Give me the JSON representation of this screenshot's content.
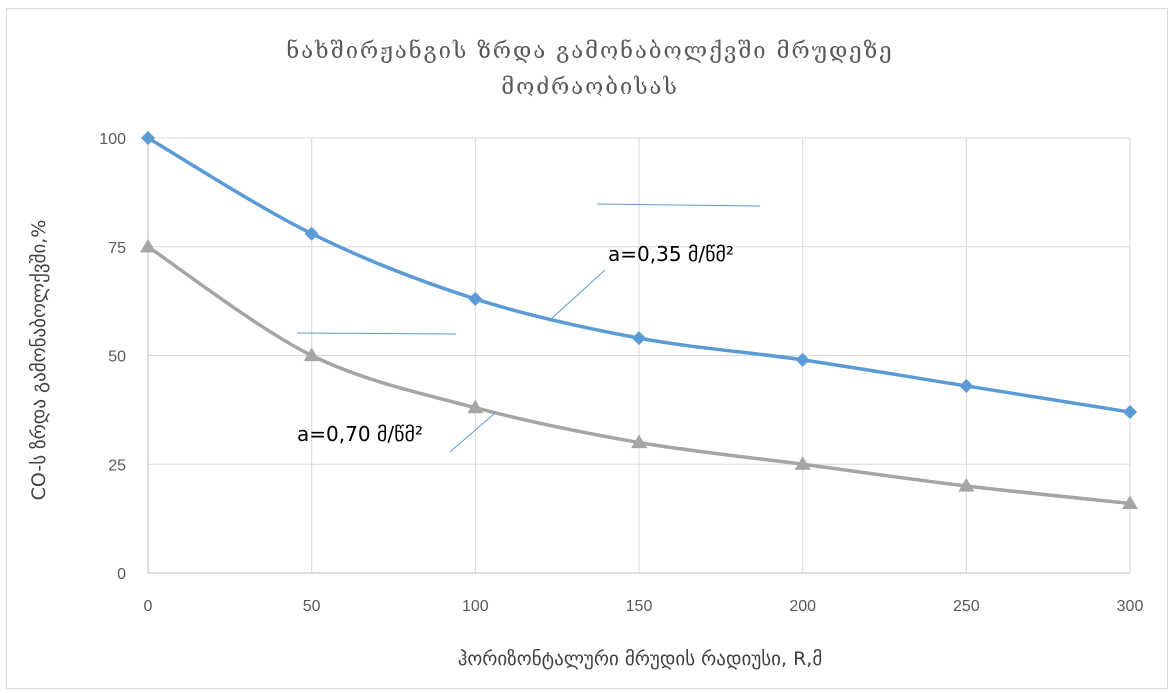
{
  "chart_data": {
    "type": "line",
    "title_lines": [
      "ნახშირჟანგის ზრდა გამონაბოლქვში მრუდეზე",
      "მოძრაობისას"
    ],
    "xlabel": "ჰორიზონტალური მრუდის რადიუსი, R,მ",
    "ylabel": "CO-ს ზრდა გამონაბოლქვში,%",
    "x": [
      0,
      50,
      100,
      150,
      200,
      250,
      300
    ],
    "xlim": [
      0,
      300
    ],
    "ylim": [
      0,
      100
    ],
    "x_ticks": [
      "0",
      "50",
      "100",
      "150",
      "200",
      "250",
      "300"
    ],
    "y_ticks": [
      "0",
      "25",
      "50",
      "75",
      "100"
    ],
    "grid": true,
    "series": [
      {
        "values": [
          100,
          78,
          63,
          54,
          49,
          43,
          37
        ],
        "color": "#5b9bd5",
        "marker": "diamond",
        "smooth": true
      },
      {
        "values": [
          75,
          50,
          38,
          30,
          25,
          20,
          16
        ],
        "color": "#a5a5a5",
        "marker": "triangle",
        "smooth": true
      }
    ],
    "annotations": [
      {
        "text": "a=0,35 მ/წმ²",
        "series_index": 0,
        "color": "#5b9bd5"
      },
      {
        "text": "a=0,70 მ/წმ²",
        "series_index": 1,
        "color": "#5b9bd5"
      }
    ]
  }
}
